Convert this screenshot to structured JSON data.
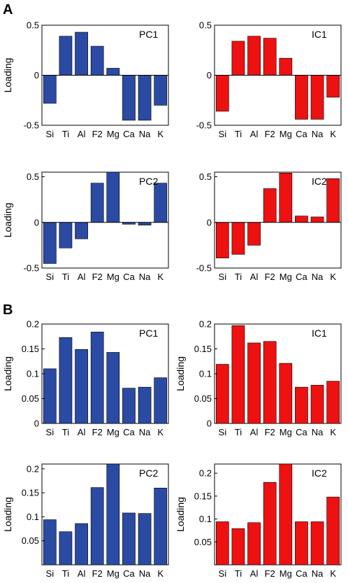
{
  "panels": [
    "A",
    "B"
  ],
  "colors": {
    "blue": "#2a4aa3",
    "red": "#ee1111"
  },
  "chart_data": [
    {
      "type": "bar",
      "title": "PC1",
      "ylabel": "Loading",
      "color": "blue",
      "categories": [
        "Si",
        "Ti",
        "Al",
        "F2",
        "Mg",
        "Ca",
        "Na",
        "K"
      ],
      "values": [
        -0.28,
        0.39,
        0.43,
        0.29,
        0.07,
        -0.45,
        -0.45,
        -0.3
      ],
      "ylim": [
        -0.5,
        0.5
      ],
      "yticks": [
        -0.5,
        0,
        0.5
      ],
      "ytick_labels": [
        "-0.5",
        "0",
        "0.5"
      ],
      "zero_line": true
    },
    {
      "type": "bar",
      "title": "IC1",
      "ylabel": "",
      "color": "red",
      "categories": [
        "Si",
        "Ti",
        "Al",
        "F2",
        "Mg",
        "Ca",
        "Na",
        "K"
      ],
      "values": [
        -0.36,
        0.34,
        0.39,
        0.37,
        0.17,
        -0.44,
        -0.44,
        -0.22
      ],
      "ylim": [
        -0.5,
        0.5
      ],
      "yticks": [
        -0.5,
        0,
        0.5
      ],
      "ytick_labels": [
        "-0.5",
        "0",
        "0.5"
      ],
      "zero_line": true
    },
    {
      "type": "bar",
      "title": "PC2",
      "ylabel": "Loading",
      "color": "blue",
      "categories": [
        "Si",
        "Ti",
        "Al",
        "F2",
        "Mg",
        "Ca",
        "Na",
        "K"
      ],
      "values": [
        -0.45,
        -0.28,
        -0.18,
        0.43,
        0.56,
        -0.02,
        -0.03,
        0.43
      ],
      "ylim": [
        -0.5,
        0.55
      ],
      "yticks": [
        -0.5,
        0,
        0.5
      ],
      "ytick_labels": [
        "-0.5",
        "0",
        "0.5"
      ],
      "zero_line": true
    },
    {
      "type": "bar",
      "title": "IC2",
      "ylabel": "",
      "color": "red",
      "categories": [
        "Si",
        "Ti",
        "Al",
        "F2",
        "Mg",
        "Ca",
        "Na",
        "K"
      ],
      "values": [
        -0.39,
        -0.35,
        -0.25,
        0.37,
        0.54,
        0.07,
        0.06,
        0.48
      ],
      "ylim": [
        -0.5,
        0.55
      ],
      "yticks": [
        -0.5,
        0,
        0.5
      ],
      "ytick_labels": [
        "-0.5",
        "0",
        "0.5"
      ],
      "zero_line": true
    },
    {
      "type": "bar",
      "title": "PC1",
      "ylabel": "Loading",
      "color": "blue",
      "categories": [
        "Si",
        "Ti",
        "Al",
        "F2",
        "Mg",
        "Ca",
        "Na",
        "K"
      ],
      "values": [
        0.11,
        0.173,
        0.149,
        0.184,
        0.143,
        0.071,
        0.073,
        0.092
      ],
      "ylim": [
        0,
        0.2
      ],
      "yticks": [
        0,
        0.05,
        0.1,
        0.15,
        0.2
      ],
      "ytick_labels": [
        "0",
        "0.05",
        "0.1",
        "0.15",
        "0.2"
      ],
      "zero_line": false
    },
    {
      "type": "bar",
      "title": "IC1",
      "ylabel": "Loading",
      "color": "red",
      "categories": [
        "Si",
        "Ti",
        "Al",
        "F2",
        "Mg",
        "Ca",
        "Na",
        "K"
      ],
      "values": [
        0.119,
        0.197,
        0.162,
        0.165,
        0.121,
        0.073,
        0.077,
        0.085
      ],
      "ylim": [
        0,
        0.2
      ],
      "yticks": [
        0,
        0.05,
        0.1,
        0.15,
        0.2
      ],
      "ytick_labels": [
        "0",
        "0.05",
        "0.1",
        "0.15",
        "0.2"
      ],
      "zero_line": false
    },
    {
      "type": "bar",
      "title": "PC2",
      "ylabel": "Loading",
      "color": "blue",
      "categories": [
        "Si",
        "Ti",
        "Al",
        "F2",
        "Mg",
        "Ca",
        "Na",
        "K"
      ],
      "values": [
        0.094,
        0.069,
        0.086,
        0.161,
        0.212,
        0.108,
        0.107,
        0.16
      ],
      "ylim": [
        0,
        0.21
      ],
      "yticks": [
        0.05,
        0.1,
        0.15,
        0.2
      ],
      "ytick_labels": [
        "0.05",
        "0.1",
        "0.15",
        "0.2"
      ],
      "zero_line": false
    },
    {
      "type": "bar",
      "title": "IC2",
      "ylabel": "Loading",
      "color": "red",
      "categories": [
        "Si",
        "Ti",
        "Al",
        "F2",
        "Mg",
        "Ca",
        "Na",
        "K"
      ],
      "values": [
        0.094,
        0.079,
        0.092,
        0.18,
        0.22,
        0.094,
        0.094,
        0.148
      ],
      "ylim": [
        0,
        0.22
      ],
      "yticks": [
        0.05,
        0.1,
        0.15,
        0.2
      ],
      "ytick_labels": [
        "0.05",
        "0.1",
        "0.15",
        "0.2"
      ],
      "zero_line": false
    }
  ]
}
